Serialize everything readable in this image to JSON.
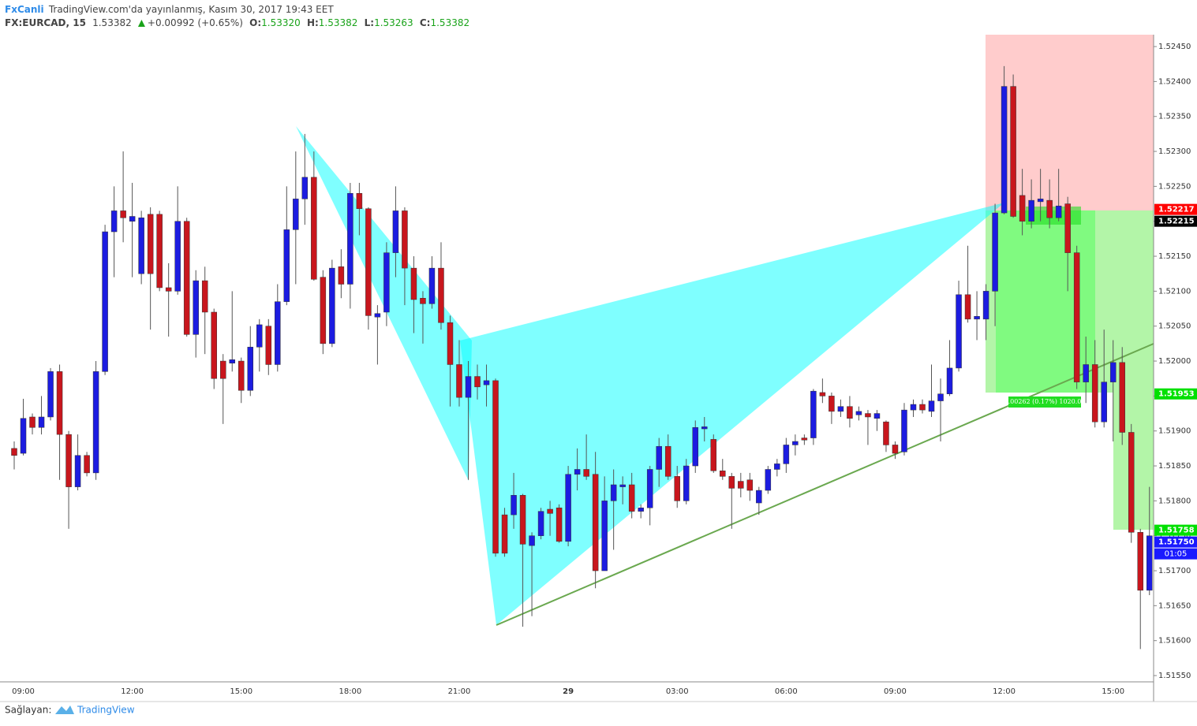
{
  "header": {
    "publisher": "FxCanli",
    "published": "TradingView.com'da yayınlanmış, Kasım 30, 2017 19:43 EET",
    "symbol": "FX:EURCAD, 15",
    "last": "1.53382",
    "change": "+0.00992 (+0.65%)",
    "ohlc": [
      {
        "key": "O:",
        "value": "1.53320"
      },
      {
        "key": "H:",
        "value": "1.53382"
      },
      {
        "key": "L:",
        "value": "1.53263"
      },
      {
        "key": "C:",
        "value": "1.53382"
      }
    ]
  },
  "footer": {
    "provided_by": "Sağlayan:",
    "brand": "TradingView"
  },
  "chart_data": {
    "type": "candlestick",
    "up_color": "#1c1ce0",
    "down_color": "#c8161d",
    "grid": false,
    "categories": [
      null,
      "09:00",
      null,
      null,
      null,
      null,
      null,
      null,
      null,
      null,
      null,
      null,
      null,
      "12:00",
      null,
      null,
      null,
      null,
      null,
      null,
      null,
      null,
      null,
      null,
      null,
      "15:00",
      null,
      null,
      null,
      null,
      null,
      null,
      null,
      null,
      null,
      null,
      null,
      "18:00",
      null,
      null,
      null,
      null,
      null,
      null,
      null,
      null,
      null,
      null,
      null,
      "21:00",
      null,
      null,
      null,
      null,
      null,
      null,
      null,
      null,
      null,
      null,
      null,
      "29",
      null,
      null,
      null,
      null,
      null,
      null,
      null,
      null,
      null,
      null,
      null,
      "03:00",
      null,
      null,
      null,
      null,
      null,
      null,
      null,
      null,
      null,
      null,
      null,
      "06:00",
      null,
      null,
      null,
      null,
      null,
      null,
      null,
      null,
      null,
      null,
      null,
      "09:00",
      null,
      null,
      null,
      null,
      null,
      null,
      null,
      null,
      null,
      null,
      null,
      "12:00",
      null,
      null,
      null,
      null,
      null,
      null,
      null,
      null,
      null,
      null,
      null,
      "15:00",
      null,
      null,
      null,
      null
    ],
    "open": [
      1.51875,
      1.51868,
      1.5192,
      1.51905,
      1.5192,
      1.51985,
      1.51895,
      1.5182,
      1.51865,
      1.5184,
      1.51985,
      1.52185,
      1.52215,
      1.522,
      1.52125,
      1.5221,
      1.5221,
      1.52105,
      1.521,
      1.522,
      1.52038,
      1.52115,
      1.5207,
      1.52,
      1.51997,
      1.52,
      1.51958,
      1.5202,
      1.5205,
      1.51995,
      1.52085,
      1.52188,
      1.52232,
      1.52263,
      1.5212,
      1.52025,
      1.52135,
      1.5211,
      1.5224,
      1.52218,
      1.52063,
      1.5207,
      1.52155,
      1.52215,
      1.52133,
      1.5209,
      1.52082,
      1.52133,
      1.52055,
      1.51995,
      1.51948,
      1.51978,
      1.51966,
      1.51972,
      1.5178,
      1.5178,
      1.51808,
      1.51736,
      1.5175,
      1.51788,
      1.5179,
      1.51742,
      1.51838,
      1.51845,
      1.51838,
      1.517,
      1.518,
      1.5182,
      1.51823,
      1.51785,
      1.5179,
      1.51845,
      1.51878,
      1.51835,
      1.518,
      1.5185,
      1.51903,
      1.51888,
      1.51843,
      1.51835,
      1.51828,
      1.5183,
      1.51797,
      1.51815,
      1.51845,
      1.51853,
      1.5188,
      1.5189,
      1.5189,
      1.51955,
      1.5195,
      1.51928,
      1.51935,
      1.51923,
      1.51925,
      1.51918,
      1.51913,
      1.5188,
      1.5187,
      1.5193,
      1.51938,
      1.51928,
      1.51943,
      1.51953,
      1.5199,
      1.52095,
      1.5206,
      1.5206,
      1.521,
      1.52212,
      1.52393,
      1.52237,
      1.522,
      1.52228,
      1.5223,
      1.52205,
      1.52225,
      1.52155,
      1.5197,
      1.51995,
      1.51913,
      1.5197,
      1.51998,
      1.51898,
      1.51755,
      1.51672
    ],
    "high": [
      1.51885,
      1.51946,
      1.51925,
      1.5195,
      1.5199,
      1.51995,
      1.519,
      1.51895,
      1.5187,
      1.52,
      1.52195,
      1.5225,
      1.523,
      1.52255,
      1.52215,
      1.5222,
      1.52215,
      1.5214,
      1.5225,
      1.52205,
      1.5213,
      1.52135,
      1.52075,
      1.5201,
      1.521,
      1.52005,
      1.5205,
      1.5206,
      1.5206,
      1.5211,
      1.5225,
      1.523,
      1.52325,
      1.523,
      1.5213,
      1.52145,
      1.5216,
      1.52255,
      1.52255,
      1.5222,
      1.5208,
      1.5217,
      1.5225,
      1.5222,
      1.5215,
      1.521,
      1.5215,
      1.5217,
      1.52065,
      1.5203,
      1.52,
      1.51995,
      1.51995,
      1.51975,
      1.5179,
      1.5184,
      1.5181,
      1.51755,
      1.5179,
      1.518,
      1.51795,
      1.5185,
      1.51875,
      1.51895,
      1.5187,
      1.51835,
      1.51845,
      1.51835,
      1.5184,
      1.51795,
      1.5185,
      1.5189,
      1.51895,
      1.5185,
      1.5186,
      1.51915,
      1.5192,
      1.51895,
      1.5186,
      1.5184,
      1.5184,
      1.5184,
      1.5182,
      1.5185,
      1.5186,
      1.5189,
      1.51895,
      1.51895,
      1.5196,
      1.51975,
      1.51955,
      1.51945,
      1.5195,
      1.51935,
      1.5193,
      1.5193,
      1.51915,
      1.51885,
      1.5194,
      1.51945,
      1.51945,
      1.51995,
      1.51975,
      1.5203,
      1.52115,
      1.52165,
      1.521,
      1.5211,
      1.52225,
      1.52422,
      1.5241,
      1.52275,
      1.5226,
      1.52275,
      1.5226,
      1.52275,
      1.52235,
      1.52165,
      1.52035,
      1.5203,
      1.52045,
      1.5203,
      1.5202,
      1.5191,
      1.5176,
      1.5182
    ],
    "low": [
      1.51845,
      1.51865,
      1.51895,
      1.51895,
      1.51915,
      1.5183,
      1.5176,
      1.51815,
      1.51835,
      1.5183,
      1.5198,
      1.5212,
      1.5217,
      1.5212,
      1.5211,
      1.52045,
      1.521,
      1.52035,
      1.52095,
      1.52035,
      1.52005,
      1.5201,
      1.5196,
      1.5191,
      1.51985,
      1.5194,
      1.5195,
      1.51985,
      1.5198,
      1.51985,
      1.5208,
      1.5211,
      1.52195,
      1.52115,
      1.5201,
      1.5202,
      1.5209,
      1.52075,
      1.5218,
      1.52045,
      1.51995,
      1.5205,
      1.5212,
      1.5208,
      1.5204,
      1.52025,
      1.52075,
      1.52045,
      1.51935,
      1.51935,
      1.5183,
      1.51945,
      1.51935,
      1.5172,
      1.5172,
      1.5176,
      1.5162,
      1.51635,
      1.51745,
      1.5175,
      1.5174,
      1.51735,
      1.51815,
      1.5183,
      1.51675,
      1.517,
      1.5173,
      1.51795,
      1.51775,
      1.51775,
      1.51765,
      1.5182,
      1.5183,
      1.5179,
      1.51795,
      1.5184,
      1.51885,
      1.5184,
      1.5183,
      1.5176,
      1.51805,
      1.518,
      1.5178,
      1.5181,
      1.51835,
      1.5184,
      1.51865,
      1.5188,
      1.5188,
      1.5194,
      1.5191,
      1.5192,
      1.51905,
      1.51915,
      1.5188,
      1.519,
      1.5187,
      1.5186,
      1.51865,
      1.5192,
      1.51925,
      1.5192,
      1.51885,
      1.5195,
      1.51985,
      1.52055,
      1.5203,
      1.5203,
      1.5205,
      1.5221,
      1.52205,
      1.5218,
      1.5219,
      1.522,
      1.5219,
      1.522,
      1.521,
      1.5196,
      1.5194,
      1.51905,
      1.51905,
      1.51885,
      1.5188,
      1.5174,
      1.51588,
      1.51665
    ],
    "close": [
      1.51865,
      1.51918,
      1.51905,
      1.5192,
      1.51985,
      1.51895,
      1.5182,
      1.51865,
      1.5184,
      1.51985,
      1.52185,
      1.52215,
      1.52205,
      1.52207,
      1.52205,
      1.52125,
      1.52105,
      1.521,
      1.522,
      1.52038,
      1.52115,
      1.5207,
      1.51975,
      1.51975,
      1.52002,
      1.51958,
      1.5202,
      1.52052,
      1.51995,
      1.52085,
      1.52188,
      1.52232,
      1.52263,
      1.52117,
      1.52025,
      1.52133,
      1.5211,
      1.5224,
      1.52218,
      1.52065,
      1.52068,
      1.52155,
      1.52215,
      1.52133,
      1.52088,
      1.52082,
      1.52133,
      1.52055,
      1.51995,
      1.51948,
      1.51978,
      1.51963,
      1.51972,
      1.51725,
      1.51725,
      1.51808,
      1.51738,
      1.5175,
      1.51785,
      1.51782,
      1.51742,
      1.51838,
      1.51845,
      1.51835,
      1.517,
      1.518,
      1.51823,
      1.51823,
      1.51785,
      1.5179,
      1.51845,
      1.51878,
      1.51835,
      1.518,
      1.5185,
      1.51905,
      1.51906,
      1.51843,
      1.51835,
      1.51818,
      1.51818,
      1.51815,
      1.51815,
      1.51845,
      1.51853,
      1.5188,
      1.51885,
      1.51887,
      1.51957,
      1.5195,
      1.51928,
      1.51935,
      1.51918,
      1.51928,
      1.5192,
      1.51925,
      1.5188,
      1.51868,
      1.5193,
      1.51938,
      1.5193,
      1.51943,
      1.51953,
      1.5199,
      1.52095,
      1.5206,
      1.52064,
      1.521,
      1.52212,
      1.52393,
      1.52207,
      1.522,
      1.5223,
      1.52232,
      1.52205,
      1.52222,
      1.52155,
      1.5197,
      1.51995,
      1.51913,
      1.5197,
      1.51998,
      1.51898,
      1.51755,
      1.51672,
      1.5175
    ],
    "ylim": [
      1.51541,
      1.52467
    ],
    "yticks": [
      {
        "value": 1.5245,
        "label": "1.52450"
      },
      {
        "value": 1.524,
        "label": "1.52400"
      },
      {
        "value": 1.5235,
        "label": "1.52350"
      },
      {
        "value": 1.523,
        "label": "1.52300"
      },
      {
        "value": 1.5225,
        "label": "1.52250"
      },
      {
        "value": 1.522,
        "label": "1.52200"
      },
      {
        "value": 1.5215,
        "label": "1.52150"
      },
      {
        "value": 1.521,
        "label": "1.52100"
      },
      {
        "value": 1.5205,
        "label": "1.52050"
      },
      {
        "value": 1.52,
        "label": "1.52000"
      },
      {
        "value": 1.5195,
        "label": "1.51950"
      },
      {
        "value": 1.519,
        "label": "1.51900"
      },
      {
        "value": 1.5185,
        "label": "1.51850"
      },
      {
        "value": 1.518,
        "label": "1.51800"
      },
      {
        "value": 1.5175,
        "label": "1.51750"
      },
      {
        "value": 1.517,
        "label": "1.51700"
      },
      {
        "value": 1.5165,
        "label": "1.51650"
      },
      {
        "value": 1.516,
        "label": "1.51600"
      },
      {
        "value": 1.5155,
        "label": "1.51550"
      }
    ],
    "price_tags": [
      {
        "value": 1.52217,
        "label": "1.52217",
        "color": "#ff0000"
      },
      {
        "value": 1.52215,
        "label": "1.52215",
        "color": "#000000"
      },
      {
        "value": 1.51953,
        "label": "1.51953",
        "color": "#00e000"
      },
      {
        "value": 1.51758,
        "label": "1.51758",
        "color": "#00e000"
      },
      {
        "value": 1.5175,
        "label": "1.51750",
        "color": "#1a1aff"
      }
    ],
    "countdown": "01:05",
    "annotations": [
      "0.00262 (0.17%) 1020.07"
    ]
  }
}
